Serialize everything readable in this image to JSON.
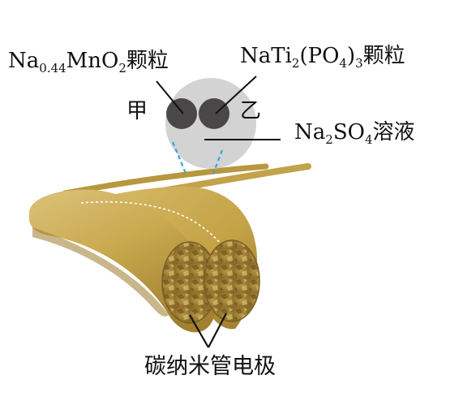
{
  "labels": {
    "mno2": {
      "prefix": "Na",
      "sub1": "0.44",
      "mid": "MnO",
      "sub2": "2",
      "suffix": "颗粒"
    },
    "nati": {
      "prefix": "NaTi",
      "sub1": "2",
      "mid": "(PO",
      "sub2": "4",
      "mid2": ")",
      "sub3": "3",
      "suffix": "颗粒"
    },
    "electrolyte": {
      "prefix": "Na",
      "sub1": "2",
      "mid": "SO",
      "sub2": "4",
      "suffix": "溶液"
    },
    "jia": "甲",
    "yi": "乙",
    "electrode": "碳纳米管电极"
  },
  "colors": {
    "fiber": "#c9a94e",
    "fiber_dark": "#8f6e24",
    "fiber_light": "#dcc27a",
    "circle_bg": "#d3d3d3",
    "particle": "#4a4748",
    "dashed": "#2fa8d8"
  }
}
